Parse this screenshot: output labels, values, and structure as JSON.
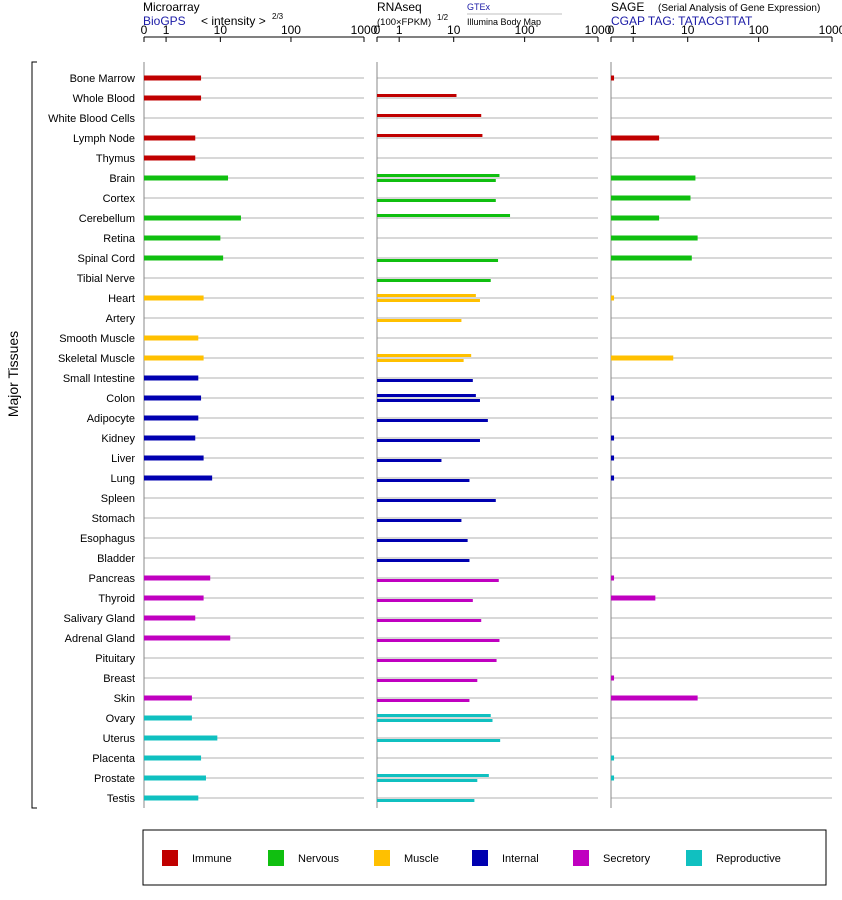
{
  "colors": {
    "Immune": "#c00000",
    "Nervous": "#10bf10",
    "Muscle": "#ffc000",
    "Internal": "#0000b0",
    "Secretory": "#c000c0",
    "Reproductive": "#10c0c0",
    "header_blue": "#1a1aa6",
    "gridline": "#bbbbbb"
  },
  "header": {
    "microarray_title": "Microarray",
    "microarray_source": "BioGPS",
    "microarray_units": "< intensity >",
    "microarray_exp": "2/3",
    "rnaseq_title": "RNAseq",
    "rnaseq_units": "(100×FPKM)",
    "rnaseq_exp": "1/2",
    "rnaseq_source1": "GTEx",
    "rnaseq_source2": "Illumina Body Map",
    "sage_title": "SAGE",
    "sage_subtitle": "(Serial Analysis of Gene Expression)",
    "sage_tag": "CGAP TAG: TATACGTTAT"
  },
  "group_label": "Major Tissues",
  "chart_data": {
    "type": "bar",
    "axis_ticks": [
      "0",
      "1",
      "10",
      "100",
      "1000"
    ],
    "categories": [
      "Bone Marrow",
      "Whole Blood",
      "White Blood Cells",
      "Lymph Node",
      "Thymus",
      "Brain",
      "Cortex",
      "Cerebellum",
      "Retina",
      "Spinal Cord",
      "Tibial Nerve",
      "Heart",
      "Artery",
      "Smooth Muscle",
      "Skeletal Muscle",
      "Small Intestine",
      "Colon",
      "Adipocyte",
      "Kidney",
      "Liver",
      "Lung",
      "Spleen",
      "Stomach",
      "Esophagus",
      "Bladder",
      "Pancreas",
      "Thyroid",
      "Salivary Gland",
      "Adrenal Gland",
      "Pituitary",
      "Breast",
      "Skin",
      "Ovary",
      "Uterus",
      "Placenta",
      "Prostate",
      "Testis"
    ],
    "systems": [
      "Immune",
      "Immune",
      "Immune",
      "Immune",
      "Immune",
      "Nervous",
      "Nervous",
      "Nervous",
      "Nervous",
      "Nervous",
      "Nervous",
      "Muscle",
      "Muscle",
      "Muscle",
      "Muscle",
      "Internal",
      "Internal",
      "Internal",
      "Internal",
      "Internal",
      "Internal",
      "Internal",
      "Internal",
      "Internal",
      "Internal",
      "Secretory",
      "Secretory",
      "Secretory",
      "Secretory",
      "Secretory",
      "Secretory",
      "Secretory",
      "Reproductive",
      "Reproductive",
      "Reproductive",
      "Reproductive",
      "Reproductive"
    ],
    "microarray": [
      5,
      5,
      null,
      4,
      4,
      13,
      null,
      20,
      10,
      11,
      null,
      5.5,
      null,
      4.5,
      5.5,
      4.5,
      5,
      4.5,
      4,
      5.5,
      7.5,
      null,
      null,
      null,
      null,
      7,
      5.5,
      4,
      14,
      null,
      null,
      3.5,
      3.5,
      9,
      5,
      6,
      4.5
    ],
    "rnaseq_gtex": [
      null,
      11,
      25,
      26,
      null,
      45,
      null,
      63,
      null,
      null,
      null,
      21,
      null,
      null,
      18,
      null,
      21,
      null,
      null,
      null,
      null,
      null,
      null,
      null,
      null,
      null,
      null,
      null,
      null,
      null,
      null,
      null,
      34,
      null,
      null,
      32,
      null
    ],
    "rnaseq_ibm": [
      null,
      null,
      null,
      null,
      null,
      40,
      40,
      null,
      null,
      43,
      34,
      24,
      13,
      null,
      14,
      19,
      24,
      31,
      24,
      6.5,
      17,
      40,
      13,
      16,
      17,
      44,
      19,
      25,
      45,
      41,
      22,
      17,
      36,
      46,
      null,
      22,
      20
    ],
    "sage": [
      0.1,
      null,
      null,
      3.5,
      null,
      13,
      11,
      3.5,
      14,
      11.5,
      null,
      0.1,
      null,
      null,
      6,
      null,
      0.1,
      null,
      0.1,
      0.1,
      0.1,
      null,
      null,
      null,
      null,
      0.1,
      3,
      null,
      null,
      null,
      0.1,
      14,
      null,
      null,
      0.1,
      0.1,
      null
    ]
  },
  "legend": [
    {
      "name": "Immune",
      "color": "#c00000"
    },
    {
      "name": "Nervous",
      "color": "#10bf10"
    },
    {
      "name": "Muscle",
      "color": "#ffc000"
    },
    {
      "name": "Internal",
      "color": "#0000b0"
    },
    {
      "name": "Secretory",
      "color": "#c000c0"
    },
    {
      "name": "Reproductive",
      "color": "#10c0c0"
    }
  ]
}
